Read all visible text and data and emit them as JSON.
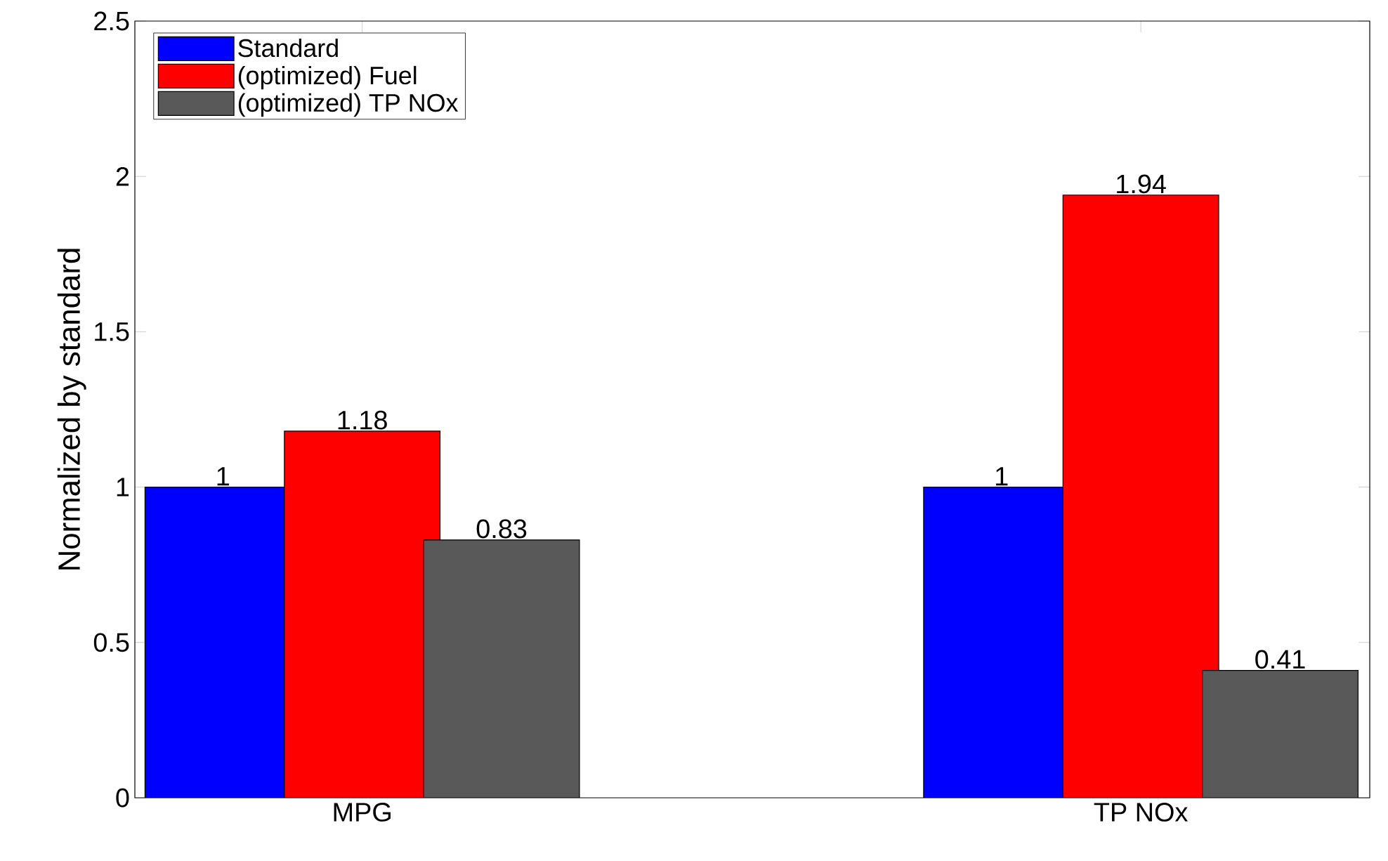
{
  "chart_data": {
    "type": "bar",
    "ylabel": "Normalized by standard",
    "categories": [
      "MPG",
      "TP NOx"
    ],
    "series": [
      {
        "name": "Standard",
        "color": "#0000ff",
        "values": [
          1,
          1
        ]
      },
      {
        "name": "(optimized) Fuel",
        "color": "#ff0000",
        "values": [
          1.18,
          1.94
        ]
      },
      {
        "name": "(optimized) TP NOx",
        "color": "#595959",
        "values": [
          0.83,
          0.41
        ]
      }
    ],
    "ylim": [
      0,
      2.5
    ],
    "yticks": [
      0,
      0.5,
      1,
      1.5,
      2,
      2.5
    ],
    "data_labels": true,
    "legend": "top left",
    "grid": false
  }
}
